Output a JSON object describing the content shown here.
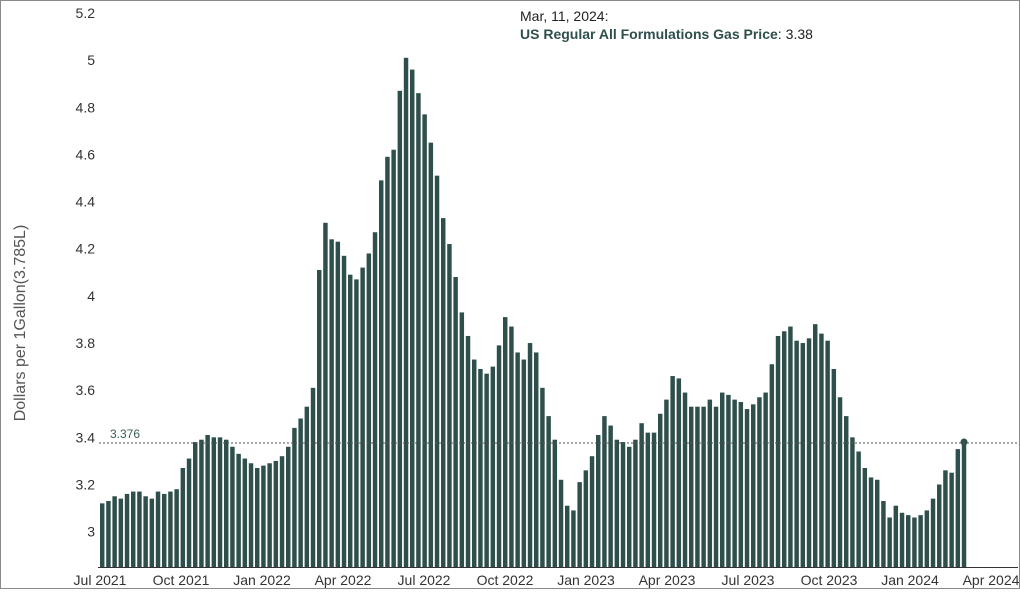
{
  "colors": {
    "bar": "#2f4f4c",
    "axis": "#333333",
    "reference": "#555555",
    "tooltip_name": "#2f4f4c"
  },
  "tooltip": {
    "date": "Mar, 11, 2024:",
    "series_label": "US Regular All Formulations Gas Price",
    "separator": ":",
    "value": "3.38"
  },
  "chart_data": {
    "type": "bar",
    "ylabel": "Dollars per 1Gallon(3.785L)",
    "ylim": [
      2.85,
      5.2
    ],
    "yticks": [
      3,
      3.2,
      3.4,
      3.6,
      3.8,
      4,
      4.2,
      4.4,
      4.6,
      4.8,
      5,
      5.2
    ],
    "ytick_labels": [
      "3",
      "3.2",
      "3.4",
      "3.6",
      "3.8",
      "4",
      "4.2",
      "4.4",
      "4.6",
      "4.8",
      "5",
      "5.2"
    ],
    "x_axis_labels": [
      "Jul 2021",
      "Oct 2021",
      "Jan 2022",
      "Apr 2022",
      "Jul 2022",
      "Oct 2022",
      "Jan 2023",
      "Apr 2023",
      "Jul 2023",
      "Oct 2023",
      "Jan 2024",
      "Apr 2024"
    ],
    "reference_line": {
      "value": 3.376,
      "label": "3.376"
    },
    "highlight": {
      "date": "Mar, 11, 2024",
      "value": 3.38
    },
    "x_start": "2021-07-05",
    "frequency": "weekly",
    "values": [
      3.12,
      3.13,
      3.15,
      3.14,
      3.16,
      3.17,
      3.17,
      3.15,
      3.14,
      3.17,
      3.16,
      3.17,
      3.18,
      3.27,
      3.31,
      3.38,
      3.39,
      3.41,
      3.4,
      3.4,
      3.39,
      3.36,
      3.33,
      3.31,
      3.29,
      3.27,
      3.28,
      3.29,
      3.3,
      3.32,
      3.36,
      3.44,
      3.48,
      3.53,
      3.61,
      4.11,
      4.31,
      4.24,
      4.23,
      4.17,
      4.09,
      4.07,
      4.12,
      4.18,
      4.27,
      4.49,
      4.59,
      4.62,
      4.87,
      5.01,
      4.96,
      4.86,
      4.77,
      4.65,
      4.51,
      4.33,
      4.22,
      4.08,
      3.93,
      3.83,
      3.73,
      3.69,
      3.67,
      3.7,
      3.79,
      3.91,
      3.87,
      3.76,
      3.73,
      3.8,
      3.76,
      3.61,
      3.49,
      3.39,
      3.22,
      3.11,
      3.09,
      3.21,
      3.26,
      3.32,
      3.41,
      3.49,
      3.45,
      3.39,
      3.38,
      3.36,
      3.39,
      3.46,
      3.42,
      3.42,
      3.5,
      3.56,
      3.66,
      3.65,
      3.59,
      3.53,
      3.53,
      3.53,
      3.56,
      3.53,
      3.59,
      3.58,
      3.56,
      3.55,
      3.52,
      3.54,
      3.57,
      3.59,
      3.71,
      3.83,
      3.85,
      3.87,
      3.81,
      3.8,
      3.82,
      3.88,
      3.84,
      3.81,
      3.69,
      3.57,
      3.49,
      3.4,
      3.34,
      3.27,
      3.23,
      3.22,
      3.13,
      3.06,
      3.11,
      3.08,
      3.07,
      3.06,
      3.07,
      3.09,
      3.14,
      3.2,
      3.26,
      3.25,
      3.35,
      3.38
    ]
  }
}
